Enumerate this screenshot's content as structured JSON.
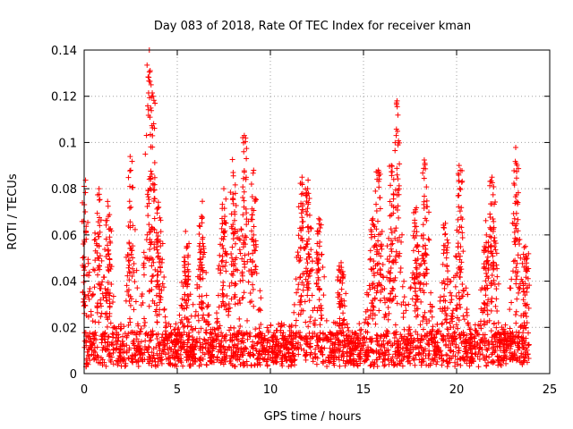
{
  "chart_data": {
    "type": "scatter",
    "title": "Day 083 of 2018, Rate Of TEC Index for receiver kman",
    "xlabel": "GPS time / hours",
    "ylabel": "ROTI / TECUs",
    "xlim": [
      0,
      25
    ],
    "ylim": [
      0,
      0.14
    ],
    "x_ticks": [
      0,
      5,
      10,
      15,
      20,
      25
    ],
    "x_tick_labels": [
      "0",
      "5",
      "10",
      "15",
      "20",
      "25"
    ],
    "y_ticks": [
      0,
      0.02,
      0.04,
      0.06,
      0.08,
      0.1,
      0.12,
      0.14
    ],
    "y_tick_labels": [
      "0",
      "0.02",
      "0.04",
      "0.06",
      "0.08",
      "0.1",
      "0.12",
      "0.14"
    ],
    "grid": true,
    "marker": "+",
    "series_color": "#ff0000",
    "data_x_range_hours": [
      0,
      23.9
    ],
    "approx_point_count": 2800,
    "peaks": [
      {
        "x": 0.0,
        "y": 0.081
      },
      {
        "x": 0.8,
        "y": 0.08
      },
      {
        "x": 1.3,
        "y": 0.068
      },
      {
        "x": 2.5,
        "y": 0.088
      },
      {
        "x": 3.5,
        "y": 0.14
      },
      {
        "x": 3.7,
        "y": 0.12
      },
      {
        "x": 4.0,
        "y": 0.072
      },
      {
        "x": 5.5,
        "y": 0.055
      },
      {
        "x": 6.3,
        "y": 0.068
      },
      {
        "x": 7.5,
        "y": 0.08
      },
      {
        "x": 8.0,
        "y": 0.087
      },
      {
        "x": 8.6,
        "y": 0.103
      },
      {
        "x": 9.1,
        "y": 0.088
      },
      {
        "x": 11.7,
        "y": 0.085
      },
      {
        "x": 12.0,
        "y": 0.08
      },
      {
        "x": 12.6,
        "y": 0.067
      },
      {
        "x": 13.8,
        "y": 0.048
      },
      {
        "x": 15.5,
        "y": 0.067
      },
      {
        "x": 15.8,
        "y": 0.088
      },
      {
        "x": 16.5,
        "y": 0.09
      },
      {
        "x": 16.8,
        "y": 0.118
      },
      {
        "x": 17.8,
        "y": 0.07
      },
      {
        "x": 18.3,
        "y": 0.091
      },
      {
        "x": 19.4,
        "y": 0.065
      },
      {
        "x": 20.2,
        "y": 0.088
      },
      {
        "x": 21.6,
        "y": 0.06
      },
      {
        "x": 21.9,
        "y": 0.085
      },
      {
        "x": 23.2,
        "y": 0.091
      },
      {
        "x": 23.7,
        "y": 0.055
      }
    ]
  }
}
